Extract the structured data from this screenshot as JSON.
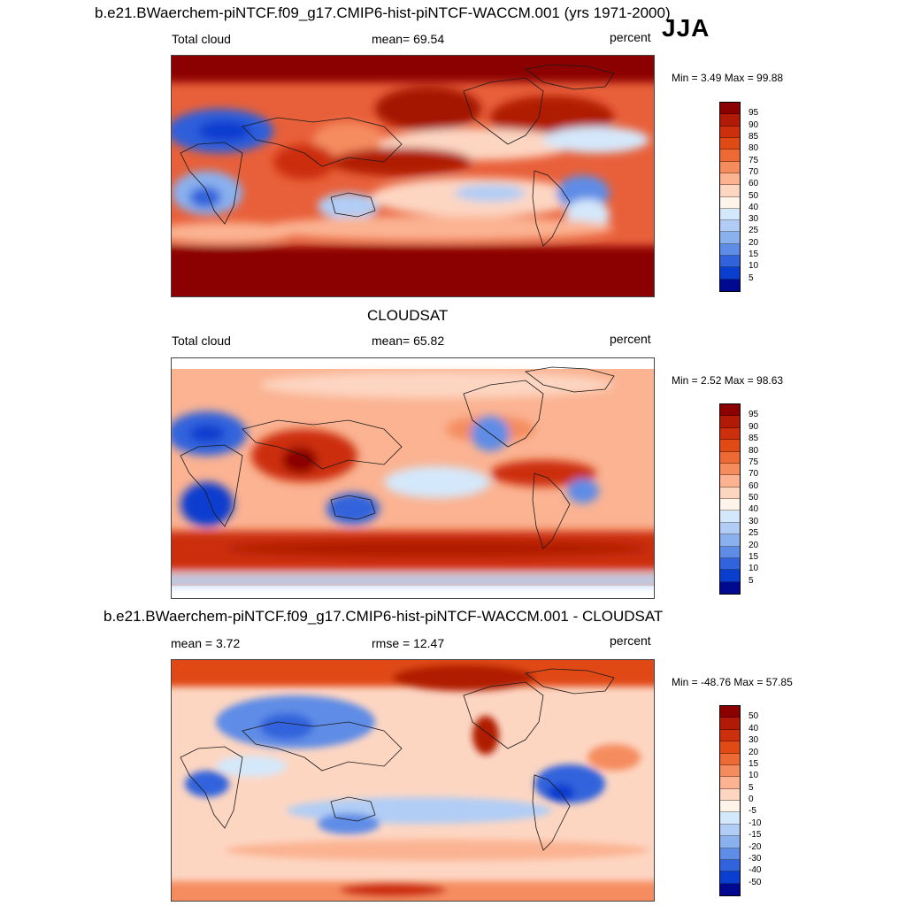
{
  "season": "JJA",
  "panels": [
    {
      "title": "b.e21.BWaerchem-piNTCF.f09_g17.CMIP6-hist-piNTCF-WACCM.001 (yrs 1971-2000)",
      "left_label": "Total cloud",
      "center_label": "mean=  69.54",
      "right_label": "percent",
      "minmax": "Min =   3.49 Max =  99.88",
      "colorbar": {
        "labels": [
          "95",
          "90",
          "85",
          "80",
          "75",
          "70",
          "60",
          "50",
          "40",
          "30",
          "25",
          "20",
          "15",
          "10",
          "5"
        ],
        "colors": [
          "#8b0000",
          "#b01a06",
          "#cc2f0b",
          "#e04a14",
          "#ee6a35",
          "#f58c5e",
          "#fbb392",
          "#fdd6c2",
          "#fff4ea",
          "#d4e8fb",
          "#b1cdf5",
          "#8ab0ee",
          "#5f8ce6",
          "#3164dc",
          "#0a3ecf",
          "#00098f"
        ]
      }
    },
    {
      "title": "CLOUDSAT",
      "left_label": "Total cloud",
      "center_label": "mean=  65.82",
      "right_label": "percent",
      "minmax": "Min =   2.52 Max =  98.63",
      "colorbar": {
        "labels": [
          "95",
          "90",
          "85",
          "80",
          "75",
          "70",
          "60",
          "50",
          "40",
          "30",
          "25",
          "20",
          "15",
          "10",
          "5"
        ],
        "colors": [
          "#8b0000",
          "#b01a06",
          "#cc2f0b",
          "#e04a14",
          "#ee6a35",
          "#f58c5e",
          "#fbb392",
          "#fdd6c2",
          "#fff4ea",
          "#d4e8fb",
          "#b1cdf5",
          "#8ab0ee",
          "#5f8ce6",
          "#3164dc",
          "#0a3ecf",
          "#00098f"
        ]
      }
    },
    {
      "title": "b.e21.BWaerchem-piNTCF.f09_g17.CMIP6-hist-piNTCF-WACCM.001 - CLOUDSAT",
      "left_label": "mean =   3.72",
      "center_label": "rmse =  12.47",
      "right_label": "percent",
      "minmax": "Min = -48.76 Max =  57.85",
      "colorbar": {
        "labels": [
          "50",
          "40",
          "30",
          "20",
          "15",
          "10",
          "5",
          "0",
          "-5",
          "-10",
          "-15",
          "-20",
          "-30",
          "-40",
          "-50"
        ],
        "colors": [
          "#8b0000",
          "#b01a06",
          "#cc2f0b",
          "#e04a14",
          "#ee6a35",
          "#f58c5e",
          "#fbb392",
          "#fdd6c2",
          "#fff4ea",
          "#d4e8fb",
          "#b1cdf5",
          "#8ab0ee",
          "#5f8ce6",
          "#3164dc",
          "#0a3ecf",
          "#00098f"
        ]
      }
    }
  ]
}
